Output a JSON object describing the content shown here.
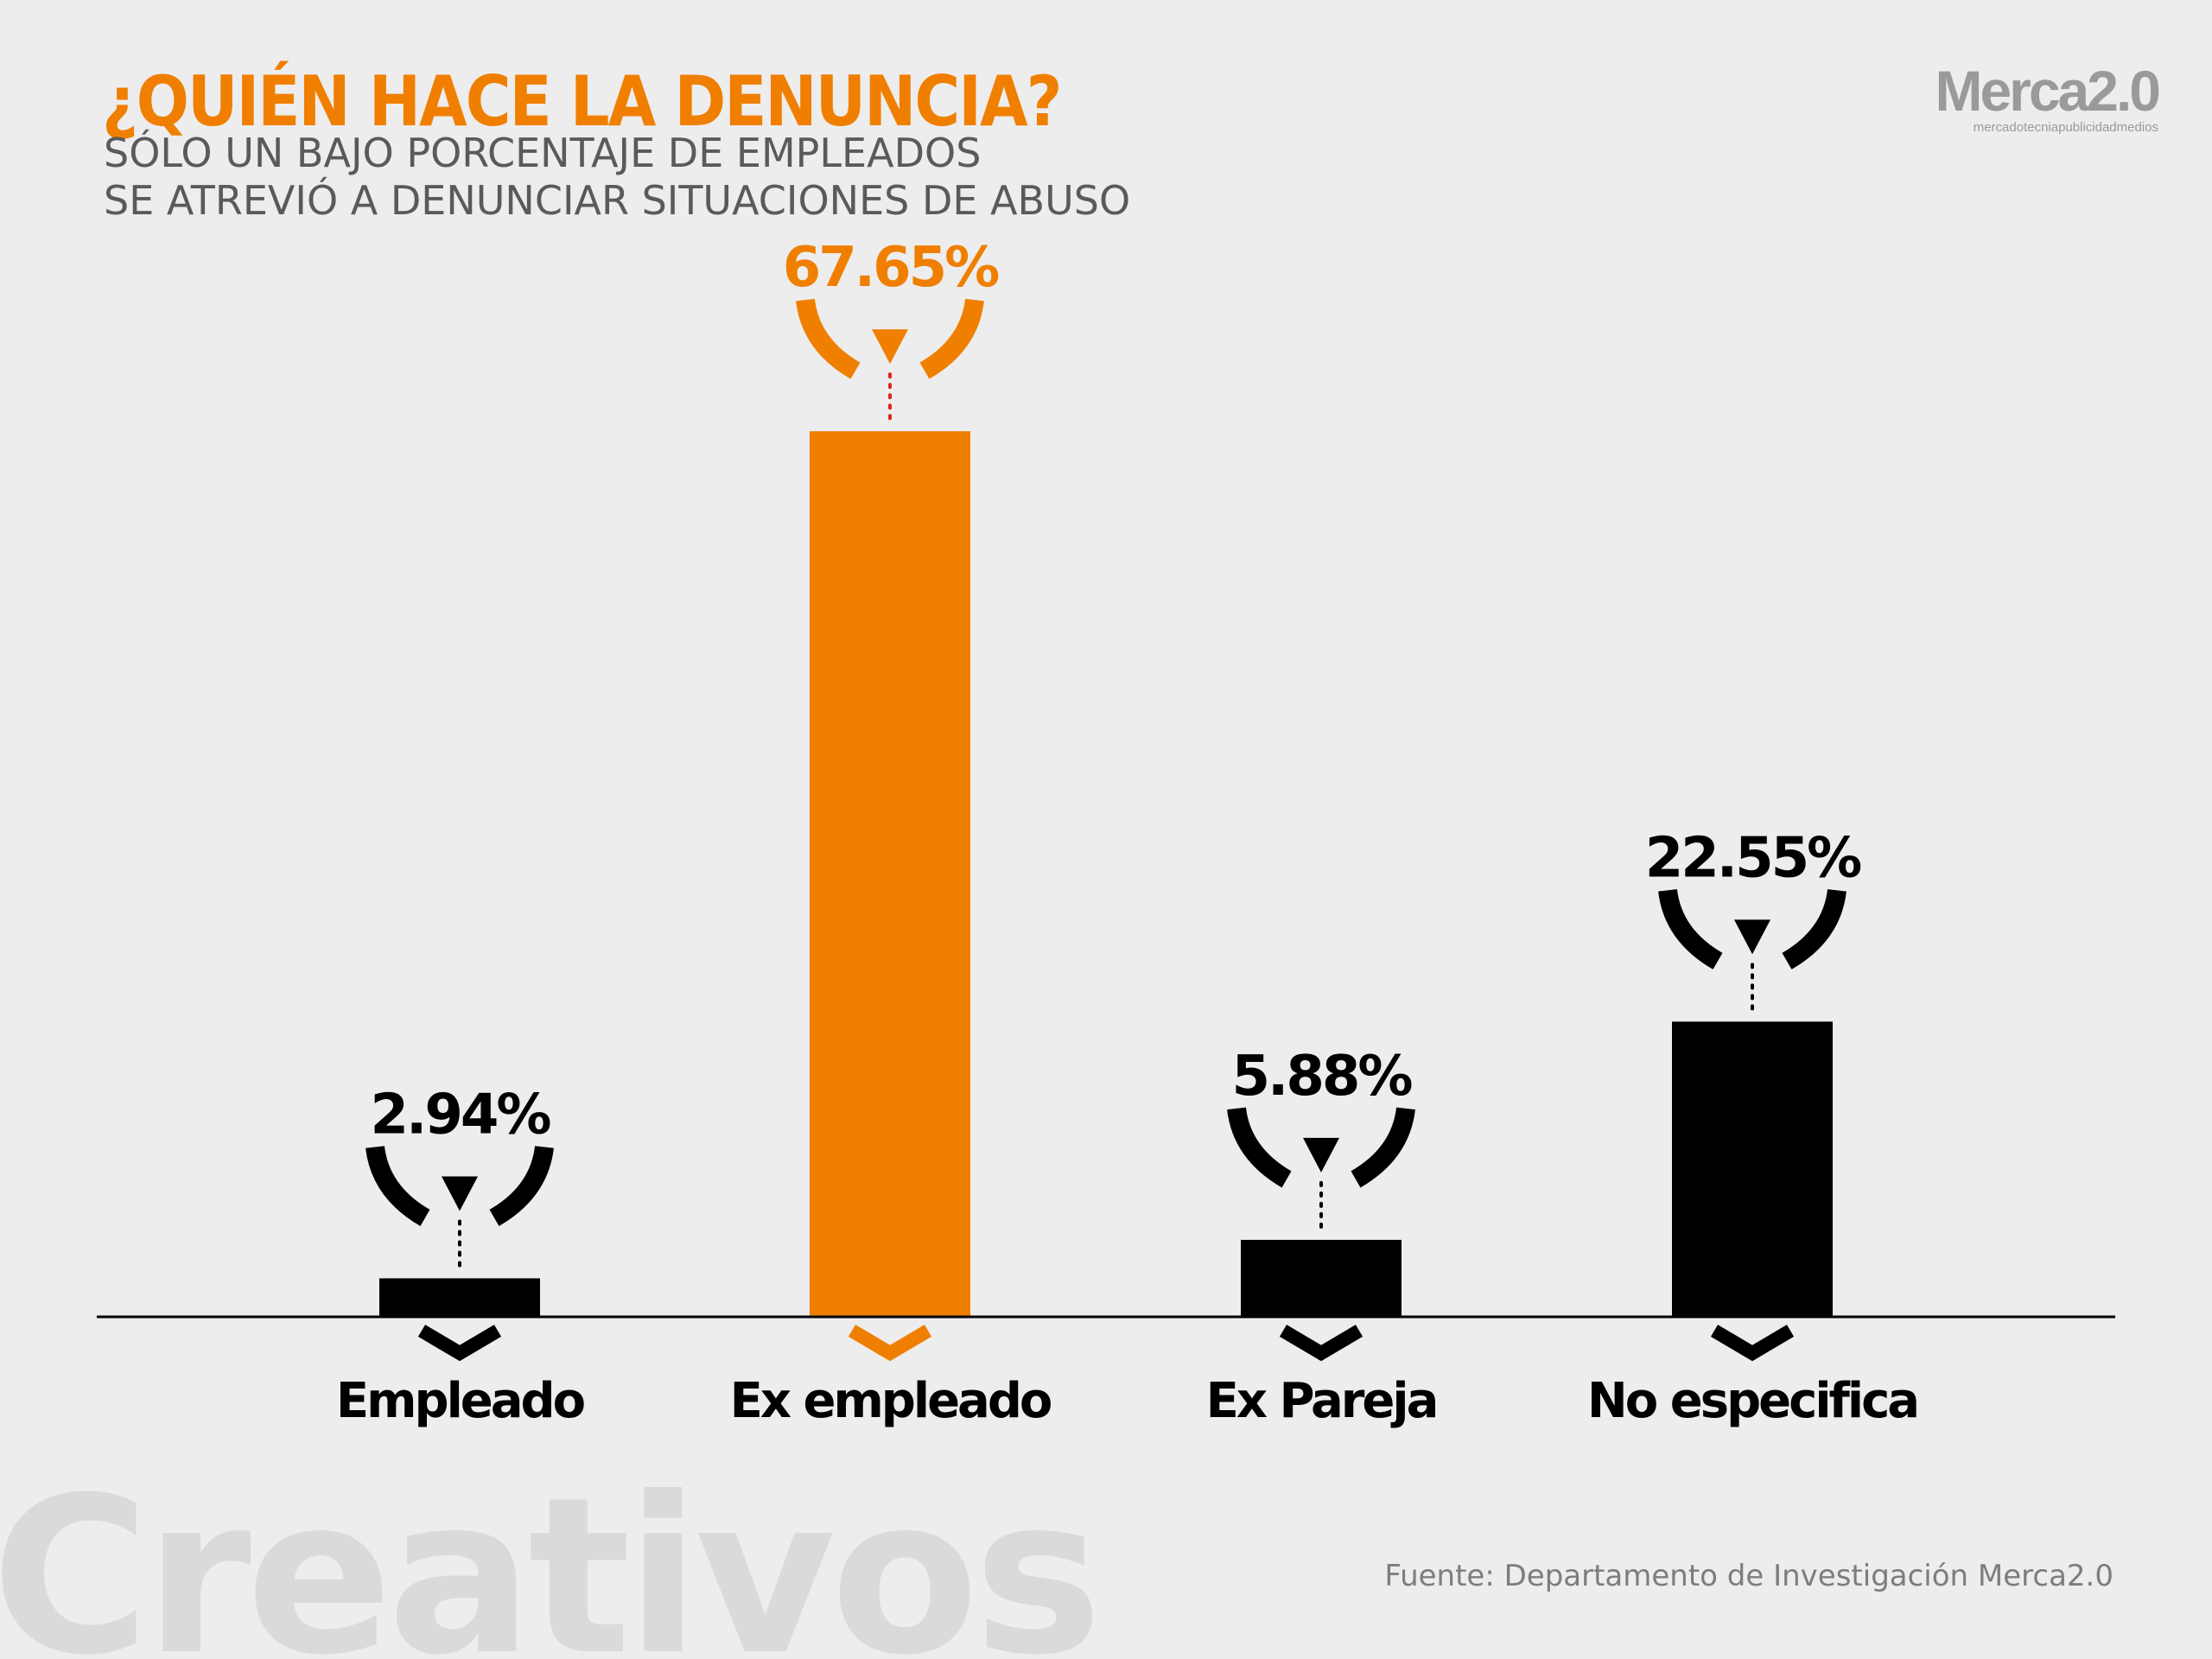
{
  "header": {
    "title": "¿QUIÉN HACE LA DENUNCIA?",
    "subtitle_line1": "SÓLO UN BAJO PORCENTAJE DE EMPLEADOS",
    "subtitle_line2": "SE ATREVIÓ A DENUNCIAR SITUACIONES DE ABUSO"
  },
  "logo": {
    "name": "Merca2.0",
    "tagline": "mercadotecniapublicidadmedios"
  },
  "watermark": "Creativos",
  "source": "Fuente:  Departamento de Investigación Merca2.0",
  "colors": {
    "background": "#ededed",
    "accent": "#f07f00",
    "bar_default": "#000000",
    "title": "#f07f00",
    "subtitle": "#5a5a5a",
    "logo": "#9a9a9a"
  },
  "chart_data": {
    "type": "bar",
    "categories": [
      "Empleado",
      "Ex empleado",
      "Ex Pareja",
      "No especifica"
    ],
    "values": [
      2.94,
      67.65,
      5.88,
      22.55
    ],
    "value_labels": [
      "2.94%",
      "67.65%",
      "5.88%",
      "22.55%"
    ],
    "highlighted_category": "Ex empleado",
    "grid": false,
    "legend": "none",
    "title": "¿QUIÉN HACE LA DENUNCIA?",
    "xlabel": "",
    "ylabel": ""
  }
}
